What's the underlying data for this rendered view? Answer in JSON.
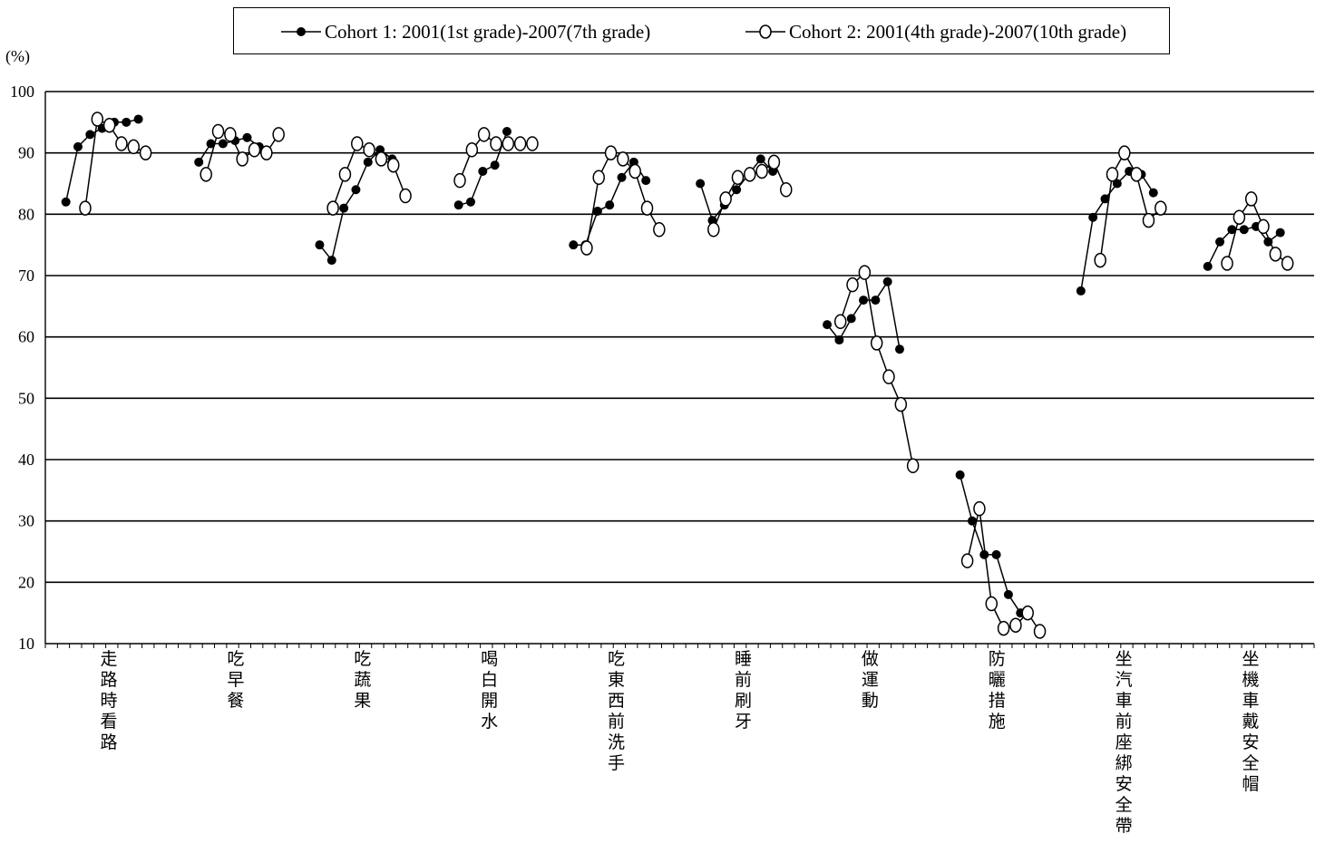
{
  "chart_data": {
    "type": "line",
    "y_unit": "(%)",
    "ylim": [
      10,
      100
    ],
    "yticks": [
      10,
      20,
      30,
      40,
      50,
      60,
      70,
      80,
      90,
      100
    ],
    "grid": true,
    "legend_position": "top",
    "categories": [
      "走路時看路",
      "吃早餐",
      "吃蔬果",
      "喝白開水",
      "吃東西前洗手",
      "睡前刷牙",
      "做運動",
      "防曬措施",
      "坐汽車前座綁安全帶",
      "坐機車戴安全帽"
    ],
    "series": [
      {
        "name": "Cohort 1: 2001(1st grade)-2007(7th grade)",
        "marker": "filled-circle",
        "color": "#000000",
        "values": [
          [
            82,
            91,
            93,
            94,
            95,
            95,
            95.5
          ],
          [
            88.5,
            91.5,
            91.5,
            92,
            92.5,
            91
          ],
          [
            75,
            72.5,
            81,
            84,
            88.5,
            90.5,
            89
          ],
          [
            81.5,
            82,
            87,
            88,
            93.5
          ],
          [
            75,
            75,
            80.5,
            81.5,
            86,
            88.5,
            85.5
          ],
          [
            85,
            79,
            81.5,
            84,
            86.5,
            89,
            87
          ],
          [
            62,
            59.5,
            63,
            66,
            66,
            69,
            58
          ],
          [
            37.5,
            30,
            24.5,
            24.5,
            18,
            15
          ],
          [
            67.5,
            79.5,
            82.5,
            85,
            87,
            86.5,
            83.5
          ],
          [
            71.5,
            75.5,
            77.5,
            77.5,
            78,
            75.5,
            77
          ]
        ]
      },
      {
        "name": "Cohort 2: 2001(4th grade)-2007(10th grade)",
        "marker": "open-circle",
        "color": "#000000",
        "values": [
          [
            81,
            95.5,
            94.5,
            91.5,
            91,
            90
          ],
          [
            86.5,
            93.5,
            93,
            89,
            90.5,
            90,
            93
          ],
          [
            81,
            86.5,
            91.5,
            90.5,
            89,
            88,
            83
          ],
          [
            85.5,
            90.5,
            93,
            91.5,
            91.5,
            91.5,
            91.5
          ],
          [
            74.5,
            86,
            90,
            89,
            87,
            81,
            77.5
          ],
          [
            77.5,
            82.5,
            86,
            86.5,
            87,
            88.5,
            84
          ],
          [
            62.5,
            68.5,
            70.5,
            59,
            53.5,
            49,
            39
          ],
          [
            23.5,
            32,
            16.5,
            12.5,
            13,
            15,
            12
          ],
          [
            72.5,
            86.5,
            90,
            86.5,
            79,
            81
          ],
          [
            72,
            79.5,
            82.5,
            78,
            73.5,
            72
          ]
        ]
      }
    ]
  }
}
